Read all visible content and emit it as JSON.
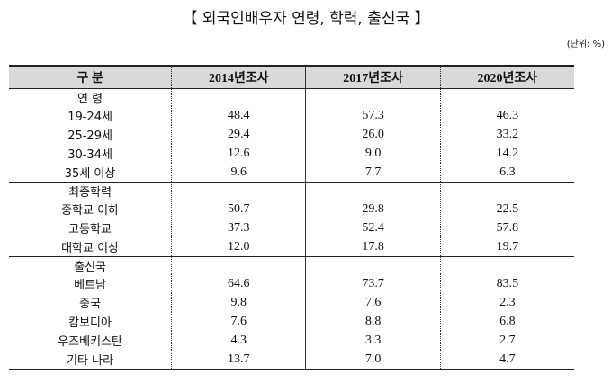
{
  "title": "【 외국인배우자 연령, 학력, 출신국 】",
  "unit": "(단위: %)",
  "table": {
    "headers": [
      "구 분",
      "2014년조사",
      "2017년조사",
      "2020년조사"
    ],
    "groups": [
      {
        "label": "연 령",
        "rows": [
          {
            "label": "19-24세",
            "values": [
              "48.4",
              "57.3",
              "46.3"
            ]
          },
          {
            "label": "25-29세",
            "values": [
              "29.4",
              "26.0",
              "33.2"
            ]
          },
          {
            "label": "30-34세",
            "values": [
              "12.6",
              "9.0",
              "14.2"
            ]
          },
          {
            "label": "35세 이상",
            "values": [
              "9.6",
              "7.7",
              "6.3"
            ]
          }
        ]
      },
      {
        "label": "최종학력",
        "rows": [
          {
            "label": "중학교 이하",
            "values": [
              "50.7",
              "29.8",
              "22.5"
            ]
          },
          {
            "label": "고등학교",
            "values": [
              "37.3",
              "52.4",
              "57.8"
            ]
          },
          {
            "label": "대학교 이상",
            "values": [
              "12.0",
              "17.8",
              "19.7"
            ]
          }
        ]
      },
      {
        "label": "출신국",
        "rows": [
          {
            "label": "베트남",
            "values": [
              "64.6",
              "73.7",
              "83.5"
            ]
          },
          {
            "label": "중국",
            "values": [
              "9.8",
              "7.6",
              "2.3"
            ]
          },
          {
            "label": "캄보디아",
            "values": [
              "7.6",
              "8.8",
              "6.8"
            ]
          },
          {
            "label": "우즈베키스탄",
            "values": [
              "4.3",
              "3.3",
              "2.7"
            ]
          },
          {
            "label": "기타 나라",
            "values": [
              "13.7",
              "7.0",
              "4.7"
            ]
          }
        ]
      }
    ]
  }
}
